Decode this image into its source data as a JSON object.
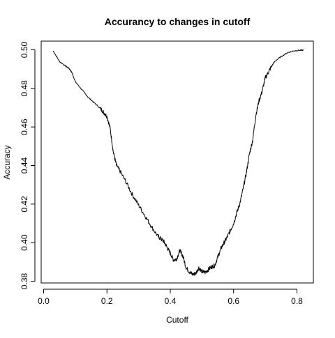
{
  "chart_data": {
    "type": "line",
    "title": "Accurancy to changes in cutoff",
    "xlabel": "Cutoff",
    "ylabel": "Accuracy",
    "xlim": [
      0.0,
      0.85
    ],
    "ylim": [
      0.38,
      0.5
    ],
    "xticks": [
      0.0,
      0.2,
      0.4,
      0.6,
      0.8
    ],
    "xtick_labels": [
      "0.0",
      "0.2",
      "0.4",
      "0.6",
      "0.8"
    ],
    "yticks": [
      0.38,
      0.4,
      0.42,
      0.44,
      0.46,
      0.48,
      0.5
    ],
    "ytick_labels": [
      "0.38",
      "0.40",
      "0.42",
      "0.44",
      "0.46",
      "0.48",
      "0.50"
    ],
    "grid": false,
    "line_color": "#000000",
    "series": [
      {
        "x": [
          0.03,
          0.05,
          0.07,
          0.08,
          0.09,
          0.1,
          0.12,
          0.14,
          0.16,
          0.18,
          0.19,
          0.2,
          0.21,
          0.22,
          0.23,
          0.24,
          0.26,
          0.28,
          0.3,
          0.32,
          0.34,
          0.36,
          0.37,
          0.38,
          0.39,
          0.4,
          0.41,
          0.42,
          0.43,
          0.44,
          0.45,
          0.46,
          0.47,
          0.48,
          0.49,
          0.5,
          0.51,
          0.52,
          0.53,
          0.54,
          0.55,
          0.56,
          0.57,
          0.58,
          0.59,
          0.6,
          0.61,
          0.62,
          0.63,
          0.64,
          0.65,
          0.66,
          0.67,
          0.68,
          0.69,
          0.7,
          0.71,
          0.72,
          0.73,
          0.75,
          0.77,
          0.79,
          0.81,
          0.82
        ],
        "y": [
          0.4995,
          0.494,
          0.4915,
          0.4905,
          0.488,
          0.4835,
          0.4795,
          0.4755,
          0.4725,
          0.4695,
          0.4675,
          0.4655,
          0.4595,
          0.447,
          0.44,
          0.4375,
          0.4315,
          0.425,
          0.4195,
          0.414,
          0.4085,
          0.4035,
          0.402,
          0.4005,
          0.3975,
          0.3945,
          0.391,
          0.3915,
          0.396,
          0.393,
          0.387,
          0.385,
          0.3835,
          0.384,
          0.387,
          0.385,
          0.3845,
          0.386,
          0.3875,
          0.388,
          0.3925,
          0.397,
          0.4,
          0.403,
          0.4065,
          0.41,
          0.4155,
          0.4205,
          0.428,
          0.436,
          0.446,
          0.453,
          0.466,
          0.4735,
          0.4785,
          0.4855,
          0.4885,
          0.4915,
          0.494,
          0.4965,
          0.4985,
          0.4995,
          0.4998,
          0.4998
        ]
      }
    ]
  }
}
